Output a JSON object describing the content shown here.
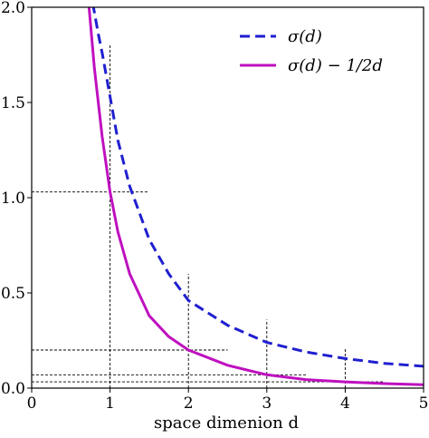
{
  "chart_data": {
    "type": "line",
    "title": "",
    "xlabel": "space dimenion d",
    "ylabel": "",
    "xlim": [
      0,
      5
    ],
    "ylim": [
      0,
      2.0
    ],
    "x_ticks": [
      0,
      1,
      2,
      3,
      4,
      5
    ],
    "x_tick_labels": [
      "0",
      "1",
      "2",
      "3",
      "4",
      "5"
    ],
    "y_ticks": [
      0,
      0.5,
      1.0,
      1.5,
      2.0
    ],
    "y_tick_labels": [
      "0.0",
      "0.5",
      "1.0",
      "1.5",
      "2.0"
    ],
    "grid": false,
    "legend_position": "top-right",
    "series": [
      {
        "name": "σ(d)",
        "style": "dashed",
        "color": "#1f1fd0",
        "x": [
          0.78,
          0.85,
          0.9,
          1.0,
          1.1,
          1.25,
          1.5,
          1.75,
          2.0,
          2.5,
          3.0,
          3.5,
          4.0,
          4.5,
          5.0
        ],
        "y": [
          2.02,
          1.86,
          1.76,
          1.53,
          1.3,
          1.06,
          0.78,
          0.6,
          0.46,
          0.33,
          0.24,
          0.19,
          0.155,
          0.13,
          0.115
        ]
      },
      {
        "name": "σ(d) − 1/2d",
        "style": "solid",
        "color": "#bf10bf",
        "x": [
          0.73,
          0.8,
          0.9,
          1.0,
          1.1,
          1.25,
          1.5,
          1.75,
          2.0,
          2.5,
          3.0,
          3.5,
          4.0,
          4.5,
          5.0
        ],
        "y": [
          2.01,
          1.68,
          1.32,
          1.03,
          0.82,
          0.6,
          0.38,
          0.27,
          0.2,
          0.12,
          0.07,
          0.045,
          0.033,
          0.024,
          0.018
        ]
      }
    ],
    "reference_lines": {
      "horizontal": [
        {
          "y": 1.03,
          "x_end": 1.5
        },
        {
          "y": 0.2,
          "x_end": 2.5
        },
        {
          "y": 0.07,
          "x_end": 3.5
        },
        {
          "y": 0.033,
          "x_end": 4.5
        }
      ],
      "vertical": [
        {
          "x": 1,
          "y_top": 1.8
        },
        {
          "x": 2,
          "y_top": 0.6
        },
        {
          "x": 3,
          "y_top": 0.36
        },
        {
          "x": 4,
          "y_top": 0.21
        }
      ]
    }
  }
}
